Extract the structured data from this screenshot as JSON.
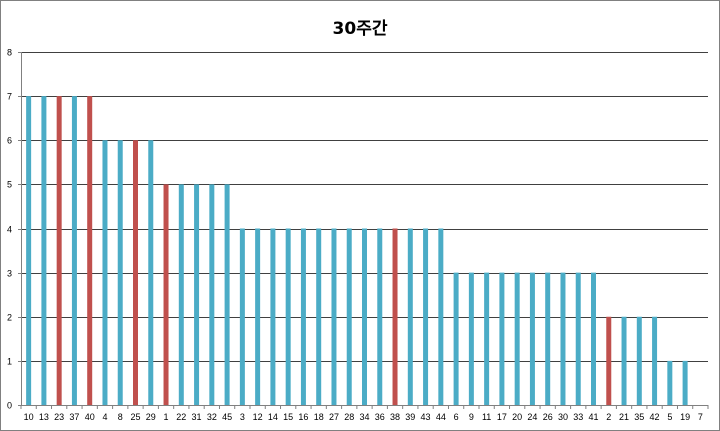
{
  "chart_data": {
    "type": "bar",
    "title": "30주간",
    "xlabel": "",
    "ylabel": "",
    "ylim": [
      0,
      8
    ],
    "yticks": [
      0,
      1,
      2,
      3,
      4,
      5,
      6,
      7,
      8
    ],
    "grid": true,
    "legend": "none",
    "categories": [
      "10",
      "13",
      "23",
      "37",
      "40",
      "4",
      "8",
      "25",
      "29",
      "1",
      "22",
      "31",
      "32",
      "45",
      "3",
      "12",
      "14",
      "15",
      "16",
      "18",
      "27",
      "28",
      "34",
      "36",
      "38",
      "39",
      "43",
      "44",
      "6",
      "9",
      "11",
      "17",
      "20",
      "24",
      "26",
      "30",
      "33",
      "41",
      "2",
      "21",
      "35",
      "42",
      "5",
      "19",
      "7"
    ],
    "values": [
      7,
      7,
      7,
      7,
      7,
      6,
      6,
      6,
      6,
      5,
      5,
      5,
      5,
      5,
      4,
      4,
      4,
      4,
      4,
      4,
      4,
      4,
      4,
      4,
      4,
      4,
      4,
      4,
      3,
      3,
      3,
      3,
      3,
      3,
      3,
      3,
      3,
      3,
      2,
      2,
      2,
      2,
      1,
      1,
      0
    ],
    "bar_colors": [
      "#4bacc6",
      "#4bacc6",
      "#c0504d",
      "#4bacc6",
      "#c0504d",
      "#4bacc6",
      "#4bacc6",
      "#c0504d",
      "#4bacc6",
      "#c0504d",
      "#4bacc6",
      "#4bacc6",
      "#4bacc6",
      "#4bacc6",
      "#4bacc6",
      "#4bacc6",
      "#4bacc6",
      "#4bacc6",
      "#4bacc6",
      "#4bacc6",
      "#4bacc6",
      "#4bacc6",
      "#4bacc6",
      "#4bacc6",
      "#c0504d",
      "#4bacc6",
      "#4bacc6",
      "#4bacc6",
      "#4bacc6",
      "#4bacc6",
      "#4bacc6",
      "#4bacc6",
      "#4bacc6",
      "#4bacc6",
      "#4bacc6",
      "#4bacc6",
      "#4bacc6",
      "#4bacc6",
      "#c0504d",
      "#4bacc6",
      "#4bacc6",
      "#4bacc6",
      "#4bacc6",
      "#4bacc6",
      "#4bacc6"
    ]
  },
  "colors": {
    "primary_bar": "#4bacc6",
    "highlight_bar": "#c0504d",
    "gridline": "#000000",
    "frame": "#808080"
  }
}
